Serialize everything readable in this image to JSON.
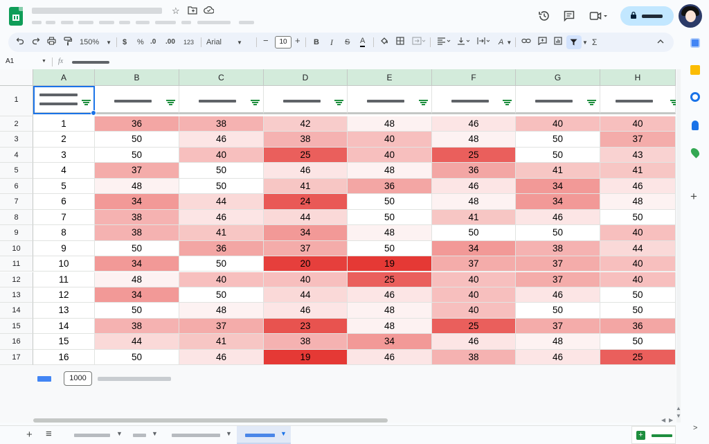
{
  "toolbar": {
    "zoom": "150%",
    "currency": "$",
    "percent": "%",
    "decimal_decrease": ".0",
    "decimal_increase": ".00",
    "number_format": "123",
    "font_family": "Arial",
    "minus": "−",
    "font_size": "10",
    "plus": "+",
    "bold": "B",
    "italic": "I",
    "strike": "S",
    "text_color": "A",
    "text_color_2": "A",
    "sum": "Σ"
  },
  "formula_bar": {
    "cell_ref": "A1",
    "fx": "fx"
  },
  "columns": [
    "A",
    "B",
    "C",
    "D",
    "E",
    "F",
    "G",
    "H"
  ],
  "row_numbers": [
    "1",
    "2",
    "3",
    "4",
    "5",
    "6",
    "7",
    "8",
    "9",
    "10",
    "11",
    "12",
    "13",
    "14",
    "15",
    "16",
    "17"
  ],
  "rows": [
    [
      "1",
      "36",
      "38",
      "42",
      "48",
      "46",
      "40",
      "40"
    ],
    [
      "2",
      "50",
      "46",
      "38",
      "40",
      "48",
      "50",
      "37"
    ],
    [
      "3",
      "50",
      "40",
      "25",
      "40",
      "25",
      "50",
      "43"
    ],
    [
      "4",
      "37",
      "50",
      "46",
      "48",
      "36",
      "41",
      "41"
    ],
    [
      "5",
      "48",
      "50",
      "41",
      "36",
      "46",
      "34",
      "46"
    ],
    [
      "6",
      "34",
      "44",
      "24",
      "50",
      "48",
      "34",
      "48"
    ],
    [
      "7",
      "38",
      "46",
      "44",
      "50",
      "41",
      "46",
      "50"
    ],
    [
      "8",
      "38",
      "41",
      "34",
      "48",
      "50",
      "50",
      "40"
    ],
    [
      "9",
      "50",
      "36",
      "37",
      "50",
      "34",
      "38",
      "44"
    ],
    [
      "10",
      "34",
      "50",
      "20",
      "19",
      "37",
      "37",
      "40"
    ],
    [
      "11",
      "48",
      "40",
      "40",
      "25",
      "40",
      "37",
      "40"
    ],
    [
      "12",
      "34",
      "50",
      "44",
      "46",
      "40",
      "46",
      "50"
    ],
    [
      "13",
      "50",
      "48",
      "46",
      "48",
      "40",
      "50",
      "50"
    ],
    [
      "14",
      "38",
      "37",
      "23",
      "48",
      "25",
      "37",
      "36"
    ],
    [
      "15",
      "44",
      "41",
      "38",
      "34",
      "46",
      "48",
      "50"
    ],
    [
      "16",
      "50",
      "46",
      "19",
      "46",
      "38",
      "46",
      "25"
    ]
  ],
  "heat_colors": {
    "low": "#e53935",
    "high": "#ffffff"
  },
  "add_rows_value": "1000",
  "sidepanel_colors": [
    "#fbbc04",
    "#1a73e8",
    "#1a73e8",
    "#34a853"
  ],
  "side_plus": "+",
  "tabs_plus": "+",
  "tabs_menu": "≡",
  "explore_icon": "+",
  "expand": ">"
}
